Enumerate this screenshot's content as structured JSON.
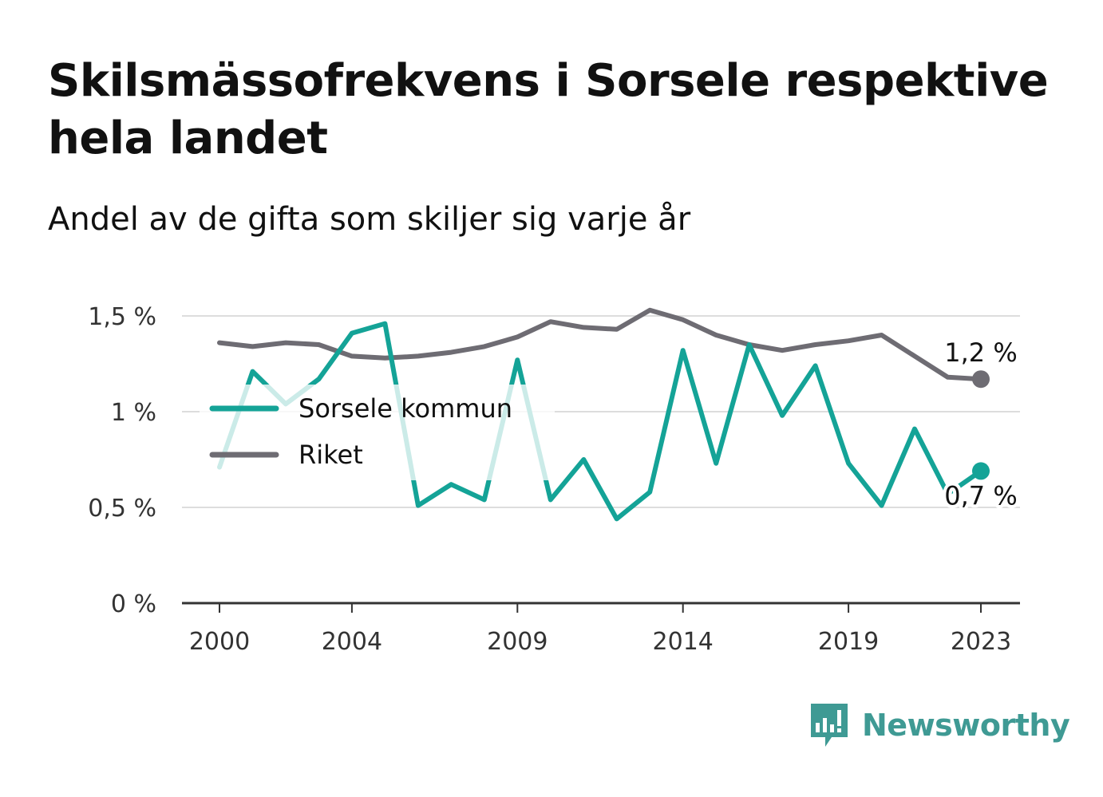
{
  "title": "Skilsmässofrekvens i Sorsele respektive hela landet",
  "subtitle": "Andel av de gifta som skiljer sig varje år",
  "brand": "Newsworthy",
  "colors": {
    "sorsele": "#14a397",
    "riket": "#6e6c73",
    "grid": "#dddddd",
    "axis": "#333333"
  },
  "chart_data": {
    "type": "line",
    "x": [
      2000,
      2001,
      2002,
      2003,
      2004,
      2005,
      2006,
      2007,
      2008,
      2009,
      2010,
      2011,
      2012,
      2013,
      2014,
      2015,
      2016,
      2017,
      2018,
      2019,
      2020,
      2021,
      2022,
      2023
    ],
    "x_ticks": [
      "2000",
      "2004",
      "2009",
      "2014",
      "2019",
      "2023"
    ],
    "y_ticks": [
      "0 %",
      "0,5 %",
      "1 %",
      "1,5 %"
    ],
    "ylim": [
      0,
      1.5
    ],
    "grid": true,
    "legend_placement": "left-middle",
    "series": [
      {
        "name": "Sorsele kommun",
        "values": [
          0.71,
          1.21,
          1.04,
          1.17,
          1.41,
          1.46,
          0.51,
          0.62,
          0.54,
          1.27,
          0.54,
          0.75,
          0.44,
          0.58,
          1.32,
          0.73,
          1.35,
          0.98,
          1.24,
          0.73,
          0.51,
          0.91,
          0.57,
          0.69
        ],
        "end_label": "0,7 %"
      },
      {
        "name": "Riket",
        "values": [
          1.36,
          1.34,
          1.36,
          1.35,
          1.29,
          1.28,
          1.29,
          1.31,
          1.34,
          1.39,
          1.47,
          1.44,
          1.43,
          1.53,
          1.48,
          1.4,
          1.35,
          1.32,
          1.35,
          1.37,
          1.4,
          1.29,
          1.18,
          1.17
        ],
        "end_label": "1,2 %"
      }
    ]
  }
}
